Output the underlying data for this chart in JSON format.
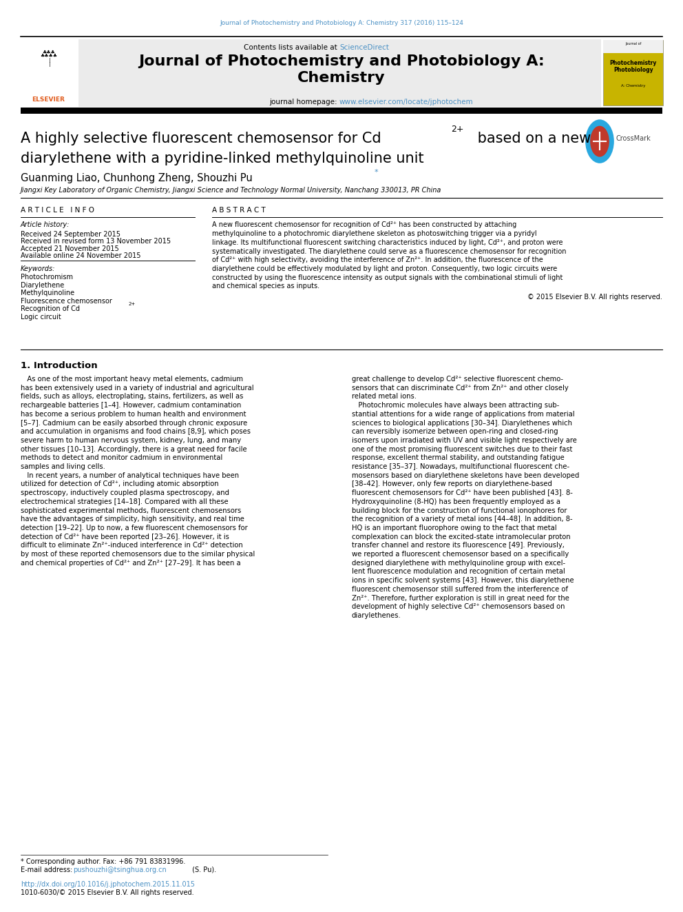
{
  "page_width": 9.92,
  "page_height": 13.23,
  "bg_color": "#ffffff",
  "journal_ref": "Journal of Photochemistry and Photobiology A: Chemistry 317 (2016) 115–124",
  "journal_ref_color": "#4a90c4",
  "header_bg": "#e8e8e8",
  "contents_text": "Contents lists available at ",
  "sciencedirect_text": "ScienceDirect",
  "sciencedirect_color": "#4a90c4",
  "journal_title": "Journal of Photochemistry and Photobiology A:\nChemistry",
  "homepage_label": "journal homepage: ",
  "homepage_url": "www.elsevier.com/locate/jphotochem",
  "homepage_url_color": "#4a90c4",
  "article_history_label": "Article history:",
  "received_1": "Received 24 September 2015",
  "received_2": "Received in revised form 13 November 2015",
  "accepted": "Accepted 21 November 2015",
  "available": "Available online 24 November 2015",
  "keywords_label": "Keywords:",
  "keywords": [
    "Photochromism",
    "Diarylethene",
    "Methylquinoline",
    "Fluorescence chemosensor",
    "Recognition of Cd2+",
    "Logic circuit"
  ],
  "copyright_text": "© 2015 Elsevier B.V. All rights reserved.",
  "intro_title": "1. Introduction",
  "footnote_star": "* Corresponding author. Fax: +86 791 83831996.",
  "footnote_email_label": "E-mail address: ",
  "footnote_email": "pushouzhi@tsinghua.org.cn",
  "footnote_email_color": "#4a90c4",
  "footnote_email_end": " (S. Pu).",
  "doi_text": "http://dx.doi.org/10.1016/j.jphotochem.2015.11.015",
  "doi_color": "#4a90c4",
  "issn_text": "1010-6030/© 2015 Elsevier B.V. All rights reserved.",
  "affiliation": "Jiangxi Key Laboratory of Organic Chemistry, Jiangxi Science and Technology Normal University, Nanchang 330013, PR China"
}
